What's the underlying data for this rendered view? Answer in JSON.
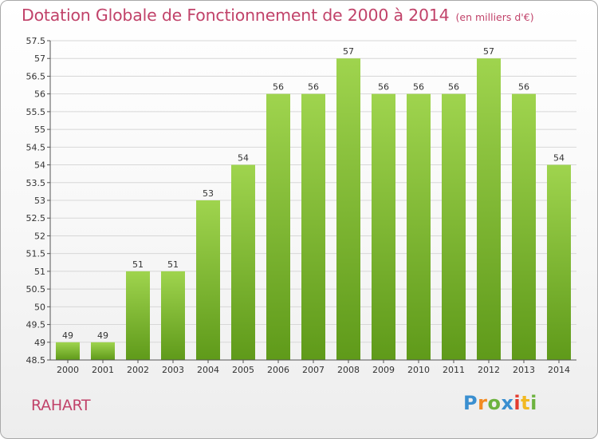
{
  "header": {
    "title": "Dotation Globale de Fonctionnement de 2000 à 2014",
    "unit": "(en milliers d'€)"
  },
  "footer": {
    "commune": "RAHART",
    "logo": "Proxiti"
  },
  "colors": {
    "title": "#c1436a",
    "bar_top": "#9fd44e",
    "bar_bottom": "#5f9a1a",
    "grid": "#d7d7d7",
    "axis": "#555555"
  },
  "chart_data": {
    "type": "bar",
    "title": "Dotation Globale de Fonctionnement de 2000 à 2014",
    "subtitle": "(en milliers d'€)",
    "xlabel": "",
    "ylabel": "",
    "categories": [
      "2000",
      "2001",
      "2002",
      "2003",
      "2004",
      "2005",
      "2006",
      "2007",
      "2008",
      "2009",
      "2010",
      "2011",
      "2012",
      "2013",
      "2014"
    ],
    "values": [
      49,
      49,
      51,
      51,
      53,
      54,
      56,
      56,
      57,
      56,
      56,
      56,
      57,
      56,
      54
    ],
    "data_labels": [
      "49",
      "49",
      "51",
      "51",
      "53",
      "54",
      "56",
      "56",
      "57",
      "56",
      "56",
      "56",
      "57",
      "56",
      "54"
    ],
    "ylim": [
      48.5,
      57.5
    ],
    "yticks": [
      48.5,
      49,
      49.5,
      50,
      50.5,
      51,
      51.5,
      52,
      52.5,
      53,
      53.5,
      54,
      54.5,
      55,
      55.5,
      56,
      56.5,
      57,
      57.5
    ],
    "ytick_labels": [
      "48.5",
      "49",
      "49.5",
      "50",
      "50.5",
      "51",
      "51.5",
      "52",
      "52.5",
      "53",
      "53.5",
      "54",
      "54.5",
      "55",
      "55.5",
      "56",
      "56.5",
      "57",
      "57.5"
    ],
    "grid": true,
    "legend": "none"
  }
}
